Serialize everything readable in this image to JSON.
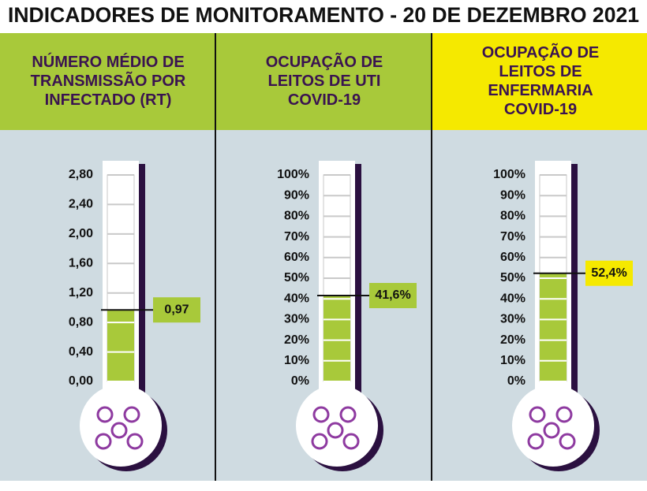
{
  "title": "INDICADORES DE MONITORAMENTO - 20 DE DEZEMBRO 2021",
  "chart_data": [
    {
      "type": "thermometer",
      "title": [
        "NÚMERO MÉDIO DE",
        "TRANSMISSÃO POR",
        "INFECTADO (RT)"
      ],
      "header_color": "#a8c93a",
      "color": "#a8c93a",
      "label_color": "#a8c93a",
      "ylim": [
        0,
        2.8
      ],
      "yticks": [
        {
          "value": 0,
          "label": "0,00"
        },
        {
          "value": 0.4,
          "label": "0,40"
        },
        {
          "value": 0.8,
          "label": "0,80"
        },
        {
          "value": 1.2,
          "label": "1,20"
        },
        {
          "value": 1.6,
          "label": "1,60"
        },
        {
          "value": 2.0,
          "label": "2,00"
        },
        {
          "value": 2.4,
          "label": "2,40"
        },
        {
          "value": 2.8,
          "label": "2,80"
        }
      ],
      "values": [
        0.97
      ],
      "value_labels": [
        "0,97"
      ]
    },
    {
      "type": "thermometer",
      "title": [
        "OCUPAÇÃO DE",
        "LEITOS DE UTI",
        "COVID-19"
      ],
      "header_color": "#a8c93a",
      "color": "#a8c93a",
      "label_color": "#a8c93a",
      "ylim": [
        0,
        100
      ],
      "yticks": [
        {
          "value": 0,
          "label": "0%"
        },
        {
          "value": 10,
          "label": "10%"
        },
        {
          "value": 20,
          "label": "20%"
        },
        {
          "value": 30,
          "label": "30%"
        },
        {
          "value": 40,
          "label": "40%"
        },
        {
          "value": 50,
          "label": "50%"
        },
        {
          "value": 60,
          "label": "60%"
        },
        {
          "value": 70,
          "label": "70%"
        },
        {
          "value": 80,
          "label": "80%"
        },
        {
          "value": 90,
          "label": "90%"
        },
        {
          "value": 100,
          "label": "100%"
        }
      ],
      "values": [
        41.6
      ],
      "value_labels": [
        "41,6%"
      ]
    },
    {
      "type": "thermometer",
      "title": [
        "OCUPAÇÃO DE",
        "LEITOS DE",
        "ENFERMARIA",
        "COVID-19"
      ],
      "header_color": "#f5e900",
      "color": "#a8c93a",
      "label_color": "#f5e900",
      "ylim": [
        0,
        100
      ],
      "yticks": [
        {
          "value": 0,
          "label": "0%"
        },
        {
          "value": 10,
          "label": "10%"
        },
        {
          "value": 20,
          "label": "20%"
        },
        {
          "value": 30,
          "label": "30%"
        },
        {
          "value": 40,
          "label": "40%"
        },
        {
          "value": 50,
          "label": "50%"
        },
        {
          "value": 60,
          "label": "60%"
        },
        {
          "value": 70,
          "label": "70%"
        },
        {
          "value": 80,
          "label": "80%"
        },
        {
          "value": 90,
          "label": "90%"
        },
        {
          "value": 100,
          "label": "100%"
        }
      ],
      "values": [
        52.4
      ],
      "value_labels": [
        "52,4%"
      ]
    }
  ]
}
